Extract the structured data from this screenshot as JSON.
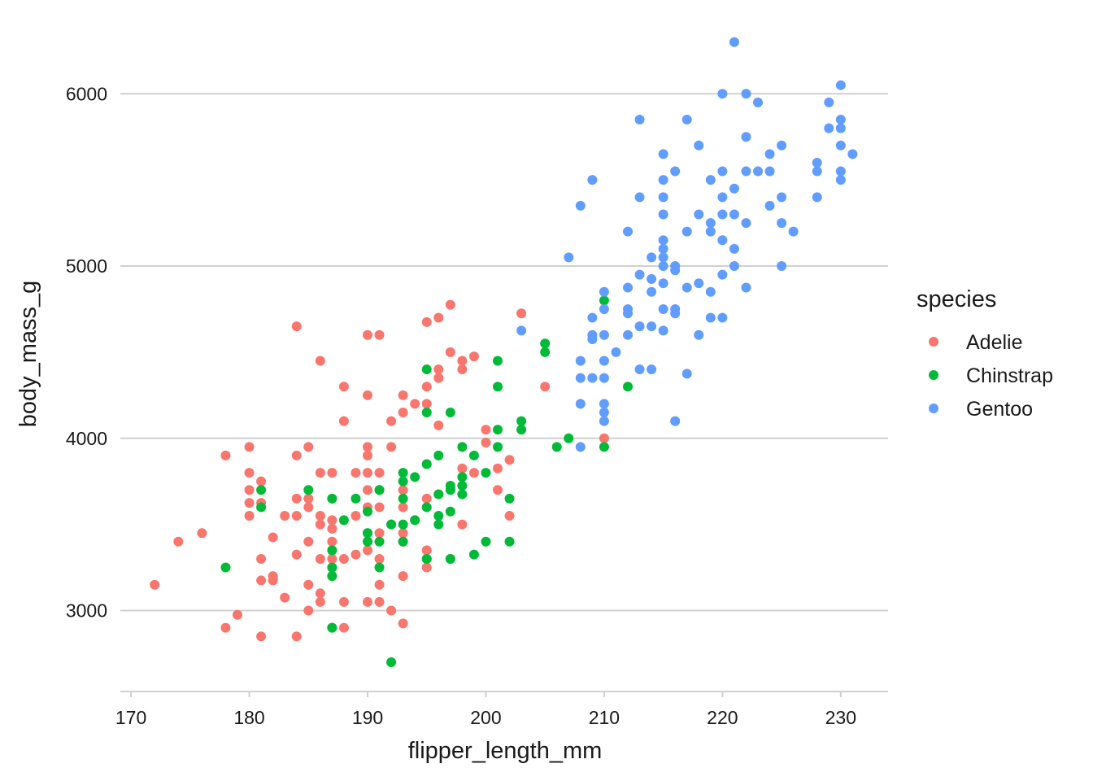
{
  "chart_data": {
    "type": "scatter",
    "title": "",
    "xlabel": "flipper_length_mm",
    "ylabel": "body_mass_g",
    "xlim": [
      169.1,
      234.0
    ],
    "ylim": [
      2530,
      6450
    ],
    "x_ticks": [
      170,
      180,
      190,
      200,
      210,
      220,
      230
    ],
    "y_ticks": [
      3000,
      4000,
      5000,
      6000
    ],
    "grid": "horizontal major lines",
    "legend": {
      "title": "species",
      "placement": "right"
    },
    "series": [
      {
        "name": "Adelie",
        "color": "#f8766d",
        "points": [
          [
            172,
            3150
          ],
          [
            174,
            3400
          ],
          [
            176,
            3450
          ],
          [
            178,
            3900
          ],
          [
            178,
            2900
          ],
          [
            179,
            2975
          ],
          [
            180,
            3950
          ],
          [
            180,
            3800
          ],
          [
            180,
            3700
          ],
          [
            180,
            3625
          ],
          [
            180,
            3550
          ],
          [
            181,
            3750
          ],
          [
            181,
            3625
          ],
          [
            181,
            3300
          ],
          [
            181,
            3175
          ],
          [
            181,
            2850
          ],
          [
            182,
            3425
          ],
          [
            182,
            3200
          ],
          [
            182,
            3175
          ],
          [
            183,
            3550
          ],
          [
            183,
            3075
          ],
          [
            184,
            4650
          ],
          [
            184,
            3900
          ],
          [
            184,
            3650
          ],
          [
            184,
            3550
          ],
          [
            184,
            3325
          ],
          [
            184,
            2850
          ],
          [
            185,
            3950
          ],
          [
            185,
            3650
          ],
          [
            185,
            3600
          ],
          [
            185,
            3400
          ],
          [
            185,
            3150
          ],
          [
            185,
            3000
          ],
          [
            186,
            4450
          ],
          [
            186,
            3800
          ],
          [
            186,
            3550
          ],
          [
            186,
            3500
          ],
          [
            186,
            3300
          ],
          [
            186,
            3100
          ],
          [
            186,
            3050
          ],
          [
            187,
            3800
          ],
          [
            187,
            3650
          ],
          [
            187,
            3525
          ],
          [
            187,
            3475
          ],
          [
            187,
            3400
          ],
          [
            187,
            3300
          ],
          [
            187,
            3200
          ],
          [
            187,
            2900
          ],
          [
            188,
            4300
          ],
          [
            188,
            4100
          ],
          [
            188,
            3300
          ],
          [
            188,
            3050
          ],
          [
            188,
            2900
          ],
          [
            189,
            3800
          ],
          [
            189,
            3550
          ],
          [
            189,
            3325
          ],
          [
            190,
            4600
          ],
          [
            190,
            4250
          ],
          [
            190,
            3950
          ],
          [
            190,
            3900
          ],
          [
            190,
            3800
          ],
          [
            190,
            3700
          ],
          [
            190,
            3600
          ],
          [
            190,
            3450
          ],
          [
            190,
            3350
          ],
          [
            190,
            3050
          ],
          [
            191,
            4600
          ],
          [
            191,
            3800
          ],
          [
            191,
            3700
          ],
          [
            191,
            3600
          ],
          [
            191,
            3450
          ],
          [
            191,
            3300
          ],
          [
            191,
            3150
          ],
          [
            191,
            3050
          ],
          [
            192,
            4100
          ],
          [
            192,
            3950
          ],
          [
            192,
            3500
          ],
          [
            192,
            3000
          ],
          [
            193,
            4250
          ],
          [
            193,
            4150
          ],
          [
            193,
            3700
          ],
          [
            193,
            3600
          ],
          [
            193,
            3450
          ],
          [
            193,
            3400
          ],
          [
            193,
            3200
          ],
          [
            193,
            2925
          ],
          [
            194,
            4200
          ],
          [
            194,
            3525
          ],
          [
            195,
            4675
          ],
          [
            195,
            4300
          ],
          [
            195,
            4200
          ],
          [
            195,
            3850
          ],
          [
            195,
            3650
          ],
          [
            195,
            3350
          ],
          [
            195,
            3300
          ],
          [
            195,
            3250
          ],
          [
            196,
            4700
          ],
          [
            196,
            4400
          ],
          [
            196,
            4350
          ],
          [
            196,
            4075
          ],
          [
            196,
            3675
          ],
          [
            197,
            4775
          ],
          [
            197,
            4500
          ],
          [
            197,
            3300
          ],
          [
            198,
            4450
          ],
          [
            198,
            4400
          ],
          [
            198,
            3825
          ],
          [
            198,
            3500
          ],
          [
            199,
            4475
          ],
          [
            199,
            3800
          ],
          [
            200,
            4050
          ],
          [
            200,
            3975
          ],
          [
            201,
            3825
          ],
          [
            201,
            3700
          ],
          [
            202,
            3875
          ],
          [
            202,
            3550
          ],
          [
            203,
            4725
          ],
          [
            205,
            4300
          ],
          [
            210,
            4000
          ]
        ]
      },
      {
        "name": "Chinstrap",
        "color": "#00ba38",
        "points": [
          [
            178,
            3250
          ],
          [
            181,
            3700
          ],
          [
            181,
            3600
          ],
          [
            185,
            3700
          ],
          [
            187,
            3650
          ],
          [
            187,
            3350
          ],
          [
            187,
            3250
          ],
          [
            187,
            3200
          ],
          [
            187,
            2900
          ],
          [
            188,
            3525
          ],
          [
            189,
            3650
          ],
          [
            190,
            3575
          ],
          [
            190,
            3450
          ],
          [
            190,
            3400
          ],
          [
            191,
            3700
          ],
          [
            191,
            3400
          ],
          [
            191,
            3250
          ],
          [
            192,
            3500
          ],
          [
            192,
            2700
          ],
          [
            193,
            3800
          ],
          [
            193,
            3750
          ],
          [
            193,
            3650
          ],
          [
            193,
            3500
          ],
          [
            193,
            3400
          ],
          [
            194,
            3775
          ],
          [
            194,
            3525
          ],
          [
            195,
            4400
          ],
          [
            195,
            4150
          ],
          [
            195,
            3850
          ],
          [
            195,
            3600
          ],
          [
            195,
            3300
          ],
          [
            196,
            3900
          ],
          [
            196,
            3675
          ],
          [
            196,
            3550
          ],
          [
            196,
            3500
          ],
          [
            197,
            4150
          ],
          [
            197,
            3725
          ],
          [
            197,
            3700
          ],
          [
            197,
            3575
          ],
          [
            197,
            3300
          ],
          [
            198,
            3950
          ],
          [
            198,
            3775
          ],
          [
            198,
            3725
          ],
          [
            198,
            3675
          ],
          [
            199,
            3900
          ],
          [
            199,
            3325
          ],
          [
            200,
            3800
          ],
          [
            200,
            3400
          ],
          [
            201,
            4450
          ],
          [
            201,
            4300
          ],
          [
            201,
            4050
          ],
          [
            201,
            3950
          ],
          [
            202,
            3650
          ],
          [
            202,
            3400
          ],
          [
            203,
            4100
          ],
          [
            203,
            4050
          ],
          [
            205,
            4550
          ],
          [
            205,
            4500
          ],
          [
            206,
            3950
          ],
          [
            207,
            4000
          ],
          [
            210,
            4800
          ],
          [
            210,
            3950
          ],
          [
            212,
            4300
          ]
        ]
      },
      {
        "name": "Gentoo",
        "color": "#619cff",
        "points": [
          [
            203,
            4625
          ],
          [
            207,
            5050
          ],
          [
            208,
            5350
          ],
          [
            208,
            4450
          ],
          [
            208,
            4350
          ],
          [
            208,
            4200
          ],
          [
            208,
            3950
          ],
          [
            209,
            5500
          ],
          [
            209,
            4700
          ],
          [
            209,
            4600
          ],
          [
            209,
            4575
          ],
          [
            209,
            4350
          ],
          [
            210,
            4850
          ],
          [
            210,
            4750
          ],
          [
            210,
            4600
          ],
          [
            210,
            4450
          ],
          [
            210,
            4350
          ],
          [
            210,
            4200
          ],
          [
            210,
            4150
          ],
          [
            210,
            4100
          ],
          [
            211,
            4500
          ],
          [
            212,
            5200
          ],
          [
            212,
            4875
          ],
          [
            212,
            4750
          ],
          [
            212,
            4725
          ],
          [
            212,
            4600
          ],
          [
            213,
            5850
          ],
          [
            213,
            5400
          ],
          [
            213,
            4950
          ],
          [
            213,
            4650
          ],
          [
            213,
            4400
          ],
          [
            214,
            5050
          ],
          [
            214,
            4925
          ],
          [
            214,
            4850
          ],
          [
            214,
            4650
          ],
          [
            214,
            4400
          ],
          [
            215,
            5650
          ],
          [
            215,
            5500
          ],
          [
            215,
            5400
          ],
          [
            215,
            5300
          ],
          [
            215,
            5150
          ],
          [
            215,
            5100
          ],
          [
            215,
            5050
          ],
          [
            215,
            5000
          ],
          [
            215,
            4900
          ],
          [
            215,
            4750
          ],
          [
            215,
            4625
          ],
          [
            216,
            5550
          ],
          [
            216,
            5000
          ],
          [
            216,
            4975
          ],
          [
            216,
            4750
          ],
          [
            216,
            4725
          ],
          [
            216,
            4100
          ],
          [
            217,
            5850
          ],
          [
            217,
            5200
          ],
          [
            217,
            4875
          ],
          [
            217,
            4375
          ],
          [
            218,
            5700
          ],
          [
            218,
            5300
          ],
          [
            218,
            4900
          ],
          [
            218,
            4600
          ],
          [
            219,
            5500
          ],
          [
            219,
            5250
          ],
          [
            219,
            5200
          ],
          [
            219,
            4850
          ],
          [
            219,
            4700
          ],
          [
            220,
            6000
          ],
          [
            220,
            5550
          ],
          [
            220,
            5400
          ],
          [
            220,
            5300
          ],
          [
            220,
            5150
          ],
          [
            220,
            4950
          ],
          [
            220,
            4700
          ],
          [
            221,
            6300
          ],
          [
            221,
            5450
          ],
          [
            221,
            5300
          ],
          [
            221,
            5100
          ],
          [
            221,
            5000
          ],
          [
            222,
            6000
          ],
          [
            222,
            5750
          ],
          [
            222,
            5550
          ],
          [
            222,
            5250
          ],
          [
            222,
            4875
          ],
          [
            223,
            5950
          ],
          [
            223,
            5550
          ],
          [
            224,
            5650
          ],
          [
            224,
            5550
          ],
          [
            224,
            5350
          ],
          [
            225,
            5700
          ],
          [
            225,
            5400
          ],
          [
            225,
            5250
          ],
          [
            225,
            5000
          ],
          [
            226,
            5200
          ],
          [
            228,
            5600
          ],
          [
            228,
            5550
          ],
          [
            228,
            5400
          ],
          [
            229,
            5950
          ],
          [
            229,
            5800
          ],
          [
            230,
            6050
          ],
          [
            230,
            5850
          ],
          [
            230,
            5800
          ],
          [
            230,
            5700
          ],
          [
            230,
            5550
          ],
          [
            230,
            5500
          ],
          [
            231,
            5650
          ]
        ]
      }
    ]
  }
}
